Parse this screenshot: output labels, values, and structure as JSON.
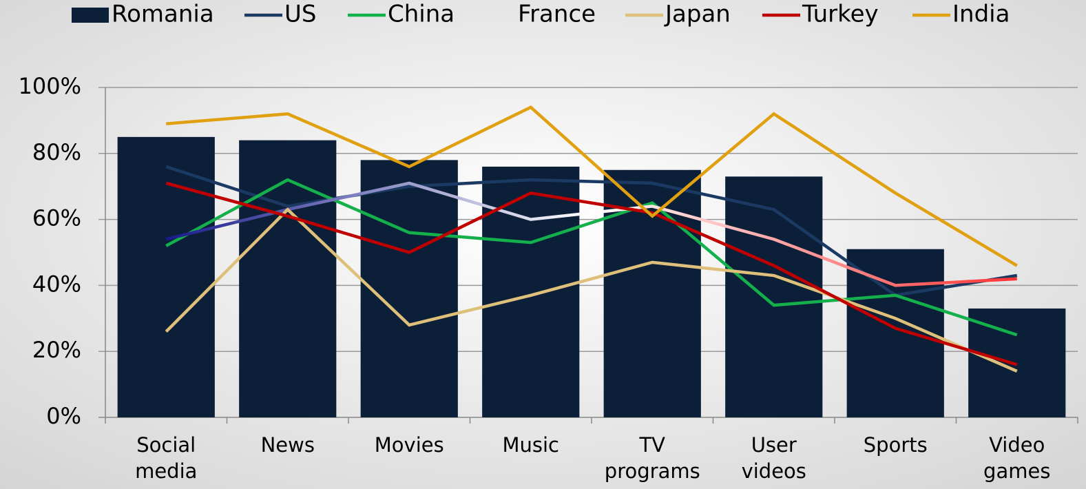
{
  "chart_data": {
    "type": "bar-line",
    "categories": [
      "Social media",
      "News",
      "Movies",
      "Music",
      "TV programs",
      "User videos",
      "Sports",
      "Video games"
    ],
    "ylim": [
      0,
      100
    ],
    "yticks": [
      {
        "value": 0,
        "label": "0%"
      },
      {
        "value": 20,
        "label": "20%"
      },
      {
        "value": 40,
        "label": "40%"
      },
      {
        "value": 60,
        "label": "60%"
      },
      {
        "value": 80,
        "label": "80%"
      },
      {
        "value": 100,
        "label": "100%"
      }
    ],
    "grid": true,
    "legend": "top",
    "series": [
      {
        "name": "Romania",
        "type": "bar",
        "color": "#0b1f38",
        "values": [
          85,
          84,
          78,
          76,
          75,
          73,
          51,
          33
        ]
      },
      {
        "name": "US",
        "type": "line",
        "color": "#1b3a63",
        "values": [
          76,
          64,
          70,
          72,
          71,
          63,
          37,
          43
        ]
      },
      {
        "name": "China",
        "type": "line",
        "color": "#14b04c",
        "values": [
          52,
          72,
          56,
          53,
          65,
          34,
          37,
          25
        ]
      },
      {
        "name": "France",
        "type": "line",
        "color": [
          "#1a1a8c",
          "#ffffff",
          "#ff3333"
        ],
        "values": [
          54,
          63,
          71,
          60,
          64,
          54,
          40,
          42
        ]
      },
      {
        "name": "Japan",
        "type": "line",
        "color": "#dfc07a",
        "values": [
          26,
          63,
          28,
          37,
          47,
          43,
          30,
          14
        ]
      },
      {
        "name": "Turkey",
        "type": "line",
        "color": "#c00000",
        "values": [
          71,
          61,
          50,
          68,
          62,
          46,
          27,
          16
        ]
      },
      {
        "name": "India",
        "type": "line",
        "color": "#e0a010",
        "values": [
          89,
          92,
          76,
          94,
          61,
          92,
          68,
          46
        ]
      }
    ]
  }
}
